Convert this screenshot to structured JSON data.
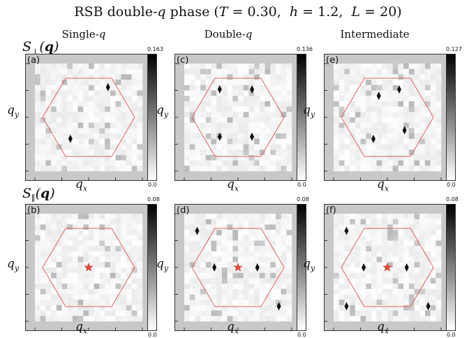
{
  "figure_title": "RSB double-q phase (T = 0.30,  h = 1.2,  L = 20)",
  "columns": [
    "Single-q",
    "Double-q",
    "Intermediate"
  ],
  "row_labels": [
    "S⊥(q)",
    "S∥(q)"
  ],
  "x_label": "q_x",
  "y_label": "q_y",
  "panels": [
    {
      "label": "(a)",
      "cbar_max": "0.163",
      "cbar_min": "0.0"
    },
    {
      "label": "(c)",
      "cbar_max": "0.136",
      "cbar_min": "0.0"
    },
    {
      "label": "(e)",
      "cbar_max": "0.127",
      "cbar_min": "0.0"
    },
    {
      "label": "(b)",
      "cbar_max": "0.08",
      "cbar_min": "0.0"
    },
    {
      "label": "(d)",
      "cbar_max": "0.08",
      "cbar_min": "0.0"
    },
    {
      "label": "(f)",
      "cbar_max": "0.08",
      "cbar_min": "0.0"
    }
  ],
  "colors": {
    "frame_gray": "#c8c8c8",
    "hexagon": "#e06060",
    "star": "#e04a3c"
  }
}
